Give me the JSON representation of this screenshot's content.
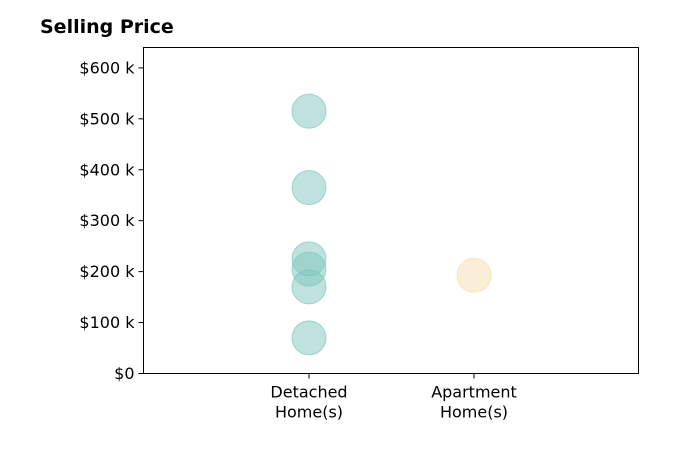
{
  "chart_data": {
    "type": "scatter",
    "title": "Selling Price",
    "xlabel": "",
    "ylabel": "",
    "categories": [
      "Detached\nHome(s)",
      "Apartment\nHome(s)"
    ],
    "series": [
      {
        "category": "Detached\nHome(s)",
        "color": "#7fc6bd",
        "values": [
          515000,
          365000,
          225000,
          205000,
          170000,
          70000
        ]
      },
      {
        "category": "Apartment\nHome(s)",
        "color": "#f5deb0",
        "values": [
          193000
        ]
      }
    ],
    "ylim": [
      0,
      640000
    ],
    "yticks": [
      0,
      100000,
      200000,
      300000,
      400000,
      500000,
      600000
    ],
    "ytick_labels": [
      "$0",
      "$100 k",
      "$200 k",
      "$300 k",
      "$400 k",
      "$500 k",
      "$600 k"
    ],
    "grid": false,
    "legend": "none"
  }
}
